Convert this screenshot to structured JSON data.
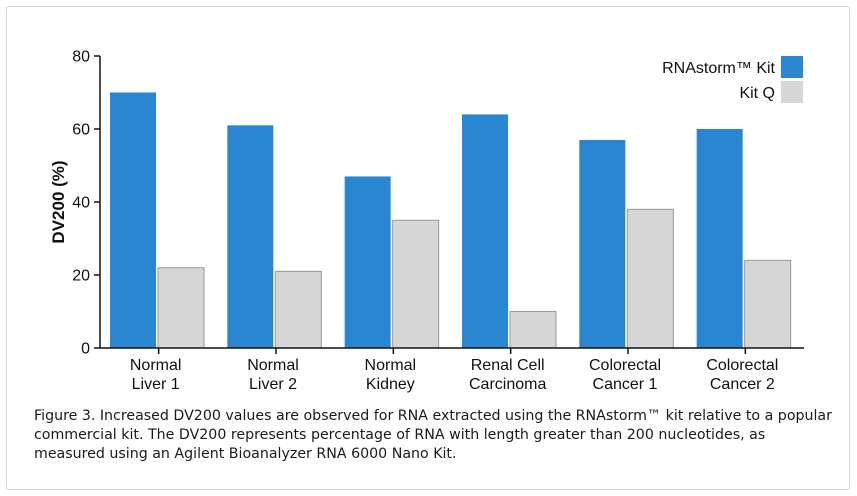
{
  "chart_data": {
    "type": "bar",
    "title": "",
    "xlabel": "",
    "ylabel": "DV200 (%)",
    "ylim": [
      0,
      80
    ],
    "yticks": [
      0,
      20,
      40,
      60,
      80
    ],
    "categories": [
      [
        "Normal",
        "Liver 1"
      ],
      [
        "Normal",
        "Liver 2"
      ],
      [
        "Normal",
        "Kidney"
      ],
      [
        "Renal Cell",
        "Carcinoma"
      ],
      [
        "Colorectal",
        "Cancer 1"
      ],
      [
        "Colorectal",
        "Cancer 2"
      ]
    ],
    "series": [
      {
        "name": "RNAstorm™ Kit",
        "color": "#2a86d0",
        "values": [
          70,
          61,
          47,
          64,
          57,
          60
        ]
      },
      {
        "name": "Kit Q",
        "color": "#d6d6d6",
        "values": [
          22,
          21,
          35,
          10,
          38,
          24
        ]
      }
    ],
    "legend_position": "top-right"
  },
  "caption": "Figure 3. Increased DV200 values are observed for RNA extracted using the RNAstorm™ kit relative to a popular commercial kit. The DV200 represents percentage of RNA with length greater than 200 nucleotides, as measured using an Agilent Bioanalyzer RNA 6000 Nano Kit."
}
